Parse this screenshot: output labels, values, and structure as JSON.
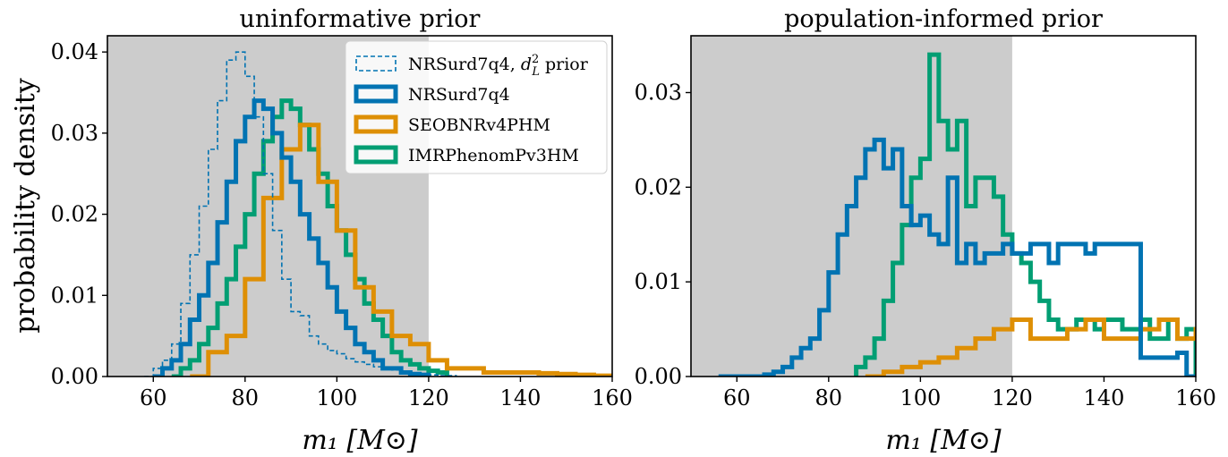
{
  "figure": {
    "ylabel": "probability density",
    "xlabel": "m₁ [M⊙]"
  },
  "chart_data": [
    {
      "type": "area",
      "title": "uninformative prior",
      "xlabel": "m₁ [M⊙]",
      "ylabel": "probability density",
      "xlim": [
        50,
        160
      ],
      "ylim": [
        0,
        0.042
      ],
      "xticks": [
        60,
        80,
        100,
        120,
        140,
        160
      ],
      "yticks": [
        0,
        0.01,
        0.02,
        0.03,
        0.04
      ],
      "ytick_labels": [
        "0.00",
        "0.01",
        "0.02",
        "0.03",
        "0.04"
      ],
      "shaded_region": [
        50,
        120
      ],
      "grid": false,
      "legend_position": "top-right",
      "series": [
        {
          "name": "NRSurd7q4, d²ₗ prior",
          "legend_text": "NRSurd7q4,",
          "legend_math": "d",
          "legend_sup": "2",
          "legend_sub": "L",
          "legend_suffix": "prior",
          "color": "#0173b2",
          "style": "dashed",
          "bin_width": 2,
          "x_start": 58,
          "values": [
            0.0,
            0.001,
            0.002,
            0.004,
            0.009,
            0.015,
            0.021,
            0.028,
            0.034,
            0.039,
            0.04,
            0.037,
            0.032,
            0.025,
            0.018,
            0.012,
            0.008,
            0.0075,
            0.005,
            0.004,
            0.0032,
            0.0028,
            0.0022,
            0.0018,
            0.0015,
            0.0012,
            0.001,
            0.0008,
            0.0006,
            0.0004,
            0.0003,
            0.0002,
            0.0001,
            0.0001
          ]
        },
        {
          "name": "NRSurd7q4",
          "color": "#0173b2",
          "style": "solid",
          "bin_width": 2,
          "x_start": 60,
          "values": [
            0.0,
            0.001,
            0.002,
            0.004,
            0.007,
            0.01,
            0.014,
            0.019,
            0.024,
            0.029,
            0.032,
            0.034,
            0.033,
            0.03,
            0.027,
            0.024,
            0.02,
            0.017,
            0.014,
            0.011,
            0.008,
            0.006,
            0.004,
            0.003,
            0.002,
            0.001,
            0.001,
            0.0005,
            0.0003,
            0.0002
          ]
        },
        {
          "name": "SEOBNRv4PHM",
          "color": "#de8f05",
          "style": "solid",
          "bin_width": 4,
          "x_start": 68,
          "values": [
            0.0,
            0.003,
            0.005,
            0.012,
            0.022,
            0.028,
            0.031,
            0.024,
            0.018,
            0.011,
            0.008,
            0.005,
            0.004,
            0.002,
            0.001,
            0.001,
            0.0005,
            0.0005,
            0.0005,
            0.0004,
            0.0003,
            0.0002,
            0.0001
          ]
        },
        {
          "name": "IMRPhenomPv3HM",
          "color": "#029e73",
          "style": "solid",
          "bin_width": 2,
          "x_start": 64,
          "values": [
            0.0,
            0.001,
            0.002,
            0.004,
            0.006,
            0.009,
            0.012,
            0.016,
            0.02,
            0.025,
            0.029,
            0.032,
            0.034,
            0.033,
            0.031,
            0.028,
            0.025,
            0.021,
            0.018,
            0.015,
            0.012,
            0.009,
            0.007,
            0.005,
            0.003,
            0.002,
            0.0015,
            0.001,
            0.0007,
            0.0005
          ]
        }
      ]
    },
    {
      "type": "area",
      "title": "population-informed prior",
      "xlabel": "m₁ [M⊙]",
      "ylabel": "",
      "xlim": [
        50,
        160
      ],
      "ylim": [
        0,
        0.036
      ],
      "xticks": [
        60,
        80,
        100,
        120,
        140,
        160
      ],
      "yticks": [
        0,
        0.01,
        0.02,
        0.03
      ],
      "ytick_labels": [
        "0.00",
        "0.01",
        "0.02",
        "0.03"
      ],
      "shaded_region": [
        50,
        120
      ],
      "grid": false,
      "series": [
        {
          "name": "NRSurd7q4",
          "color": "#0173b2",
          "style": "solid",
          "bin_width": 2,
          "x_start": 56,
          "values": [
            0.0,
            0.0,
            0.0,
            0.0,
            0.0,
            0.0002,
            0.0005,
            0.001,
            0.002,
            0.003,
            0.004,
            0.007,
            0.011,
            0.015,
            0.018,
            0.021,
            0.024,
            0.025,
            0.022,
            0.024,
            0.018,
            0.016,
            0.017,
            0.015,
            0.014,
            0.021,
            0.012,
            0.014,
            0.012,
            0.013,
            0.013,
            0.014,
            0.013,
            0.013,
            0.014,
            0.014,
            0.012,
            0.014,
            0.014,
            0.014,
            0.013,
            0.014,
            0.014,
            0.014,
            0.014,
            0.014,
            0.002,
            0.002,
            0.002,
            0.002,
            0.0025,
            0.0
          ]
        },
        {
          "name": "SEOBNRv4PHM",
          "color": "#de8f05",
          "style": "solid",
          "bin_width": 4,
          "x_start": 88,
          "values": [
            0.0,
            0.0005,
            0.001,
            0.0015,
            0.002,
            0.003,
            0.004,
            0.005,
            0.006,
            0.004,
            0.004,
            0.005,
            0.006,
            0.004,
            0.004,
            0.005,
            0.006,
            0.004,
            0.005,
            0.006,
            0.003,
            0.003,
            0.006,
            0.006,
            0.007,
            0.0065,
            0.0065
          ]
        },
        {
          "name": "IMRPhenomPv3HM",
          "color": "#029e73",
          "style": "solid",
          "bin_width": 2,
          "x_start": 86,
          "values": [
            0.001,
            0.002,
            0.004,
            0.008,
            0.012,
            0.016,
            0.021,
            0.023,
            0.034,
            0.027,
            0.024,
            0.027,
            0.018,
            0.021,
            0.021,
            0.019,
            0.015,
            0.013,
            0.012,
            0.01,
            0.008,
            0.006,
            0.005,
            0.005,
            0.006,
            0.006,
            0.005,
            0.006,
            0.006,
            0.005,
            0.005,
            0.006,
            0.004,
            0.004,
            0.006,
            0.004,
            0.005
          ]
        }
      ]
    }
  ]
}
